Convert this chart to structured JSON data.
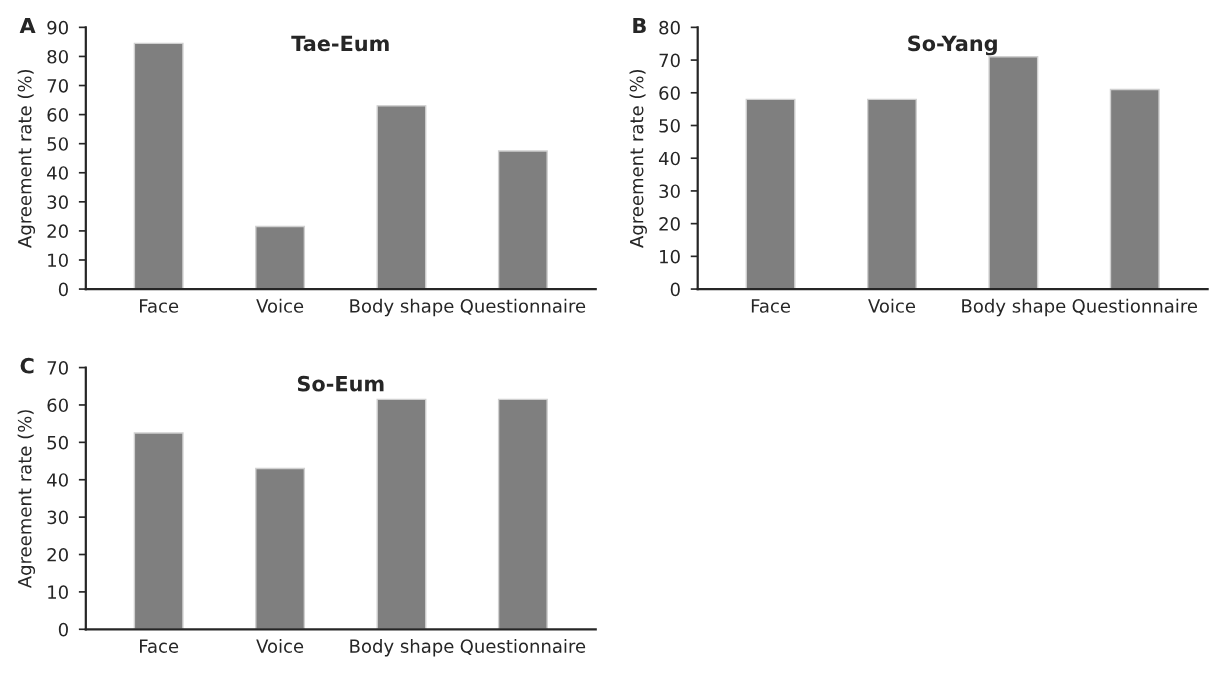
{
  "chart_data": [
    {
      "type": "bar",
      "title": "Tae-Eum",
      "ylabel": "Agreement rate (%)",
      "annotations": [
        "A"
      ],
      "categories": [
        "Face",
        "Voice",
        "Body shape",
        "Questionnaire"
      ],
      "values": [
        84.5,
        21.5,
        63,
        47.5
      ],
      "color": "#7f7f7f",
      "ylim": [
        0,
        90
      ],
      "yticks": [
        0,
        10,
        20,
        30,
        40,
        50,
        60,
        70,
        80,
        90
      ],
      "grid": false
    },
    {
      "type": "bar",
      "title": "So-Yang",
      "ylabel": "Agreement rate (%)",
      "annotations": [
        "B"
      ],
      "categories": [
        "Face",
        "Voice",
        "Body shape",
        "Questionnaire"
      ],
      "values": [
        58,
        58,
        71,
        61
      ],
      "color": "#7f7f7f",
      "ylim": [
        0,
        80
      ],
      "yticks": [
        0,
        10,
        20,
        30,
        40,
        50,
        60,
        70,
        80
      ],
      "grid": false
    },
    {
      "type": "bar",
      "title": "So-Eum",
      "ylabel": "Agreement rate (%)",
      "annotations": [
        "C"
      ],
      "categories": [
        "Face",
        "Voice",
        "Body shape",
        "Questionnaire"
      ],
      "values": [
        52.5,
        43,
        61.5,
        61.5
      ],
      "color": "#7f7f7f",
      "ylim": [
        0,
        70
      ],
      "yticks": [
        0,
        10,
        20,
        30,
        40,
        50,
        60,
        70
      ],
      "grid": false
    }
  ]
}
